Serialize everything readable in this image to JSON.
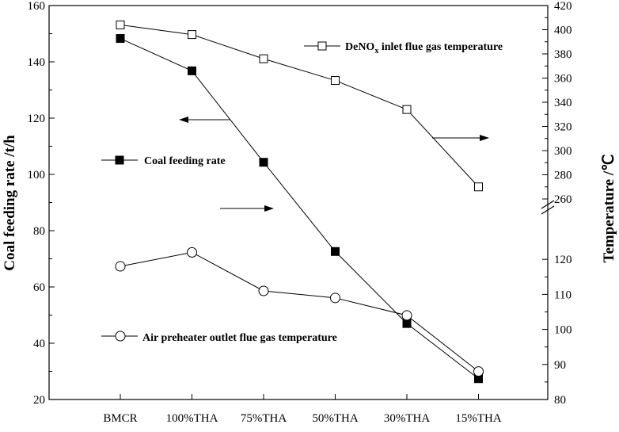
{
  "chart_data": {
    "type": "line",
    "categories": [
      "BMCR",
      "100%THA",
      "75%THA",
      "50%THA",
      "30%THA",
      "15%THA"
    ],
    "left_axis": {
      "label": "Coal feeding rate /t/h",
      "ylim": [
        20,
        160
      ],
      "ticks": [
        20,
        40,
        60,
        80,
        100,
        120,
        140,
        160
      ]
    },
    "right_axis": {
      "label": "Temperature /℃",
      "broken": true,
      "upper_segment": {
        "ylim": [
          260,
          420
        ],
        "ticks": [
          260,
          280,
          300,
          320,
          340,
          360,
          380,
          400,
          420
        ]
      },
      "lower_segment": {
        "ylim": [
          80,
          130
        ],
        "ticks": [
          80,
          90,
          100,
          110,
          120
        ]
      }
    },
    "series": [
      {
        "name": "DeNOx inlet flue gas temperature",
        "name_prefix": "DeNO",
        "name_sub": "x",
        "name_suffix": " inlet flue gas temperature",
        "axis": "right-upper",
        "marker": "open-square",
        "values": [
          404,
          396,
          376,
          358,
          334,
          270
        ]
      },
      {
        "name": "Coal feeding rate",
        "axis": "left",
        "marker": "filled-square",
        "values": [
          148.3,
          136.8,
          104.3,
          72.6,
          47.0,
          27.4
        ]
      },
      {
        "name": "Air preheater outlet flue gas temperature",
        "axis": "right-lower",
        "marker": "open-circle",
        "values": [
          118,
          122,
          111,
          109,
          104,
          88
        ]
      }
    ],
    "annotations": [
      "arrow-left (coal feeding rate)",
      "arrow-right (DeNOx)",
      "arrow-right (air preheater)"
    ],
    "legend_placement": "inside, next to each series",
    "grid": false
  }
}
